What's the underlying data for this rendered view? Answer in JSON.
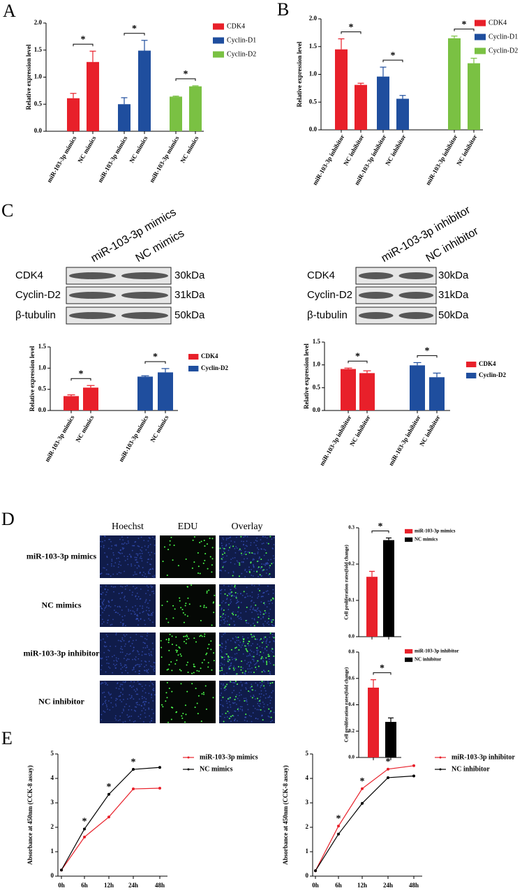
{
  "panels": [
    "A",
    "B",
    "C",
    "D",
    "E"
  ],
  "blots": [
    {
      "lanes": [
        "miR-103-3p mimics",
        "NC mimics"
      ],
      "proteins": [
        "CDK4",
        "Cyclin-D2",
        "β-tubulin"
      ],
      "sizes": [
        "30kDa",
        "31kDa",
        "50kDa"
      ]
    },
    {
      "lanes": [
        "miR-103-3p inhibitor",
        "NC inhibitor"
      ],
      "proteins": [
        "CDK4",
        "Cyclin-D2",
        "β-tubulin"
      ],
      "sizes": [
        "30kDa",
        "31kDa",
        "50kDa"
      ]
    }
  ],
  "edu": {
    "columns": [
      "Hoechst",
      "EDU",
      "Overlay"
    ],
    "rows": [
      "miR-103-3p mimics",
      "NC mimics",
      "miR-103-3p inhibitor",
      "NC inhibitor"
    ]
  },
  "chart_data": [
    {
      "type": "bar",
      "y_label": "Relative expression level",
      "categories": [
        "miR-103-3p mimics",
        "NC mimics",
        "miR-103-3p mimics",
        "NC mimics",
        "miR-103-3p mimics",
        "NC mimics"
      ],
      "series": [
        {
          "name": "CDK4",
          "color": "#e8202a",
          "values": [
            0.61,
            1.28,
            null,
            null,
            null,
            null
          ],
          "errors": [
            0.09,
            0.2,
            null,
            null,
            null,
            null
          ]
        },
        {
          "name": "Cyclin-D1",
          "color": "#1f4e9e",
          "values": [
            null,
            null,
            0.5,
            1.49,
            null,
            null
          ],
          "errors": [
            null,
            null,
            0.12,
            0.19,
            null,
            null
          ]
        },
        {
          "name": "Cyclin-D2",
          "color": "#7ac143",
          "values": [
            null,
            null,
            null,
            null,
            0.64,
            0.83
          ],
          "errors": [
            null,
            null,
            null,
            null,
            0.01,
            0.01
          ]
        }
      ],
      "annotations": [
        "*",
        "*",
        "*"
      ],
      "ylim": [
        0,
        2
      ],
      "yticks": [
        {
          "value": 0,
          "label": "0.0"
        },
        {
          "value": 0.5,
          "label": "0.5"
        },
        {
          "value": 1,
          "label": "1.0"
        },
        {
          "value": 1.5,
          "label": "1.5"
        },
        {
          "value": 2,
          "label": "2.0"
        }
      ]
    },
    {
      "type": "bar",
      "y_label": "Relative expression level",
      "categories": [
        "miR-103-3p inhibitor",
        "NC inhibitor",
        "miR-103-3p inhibitor",
        "NC inhibitor",
        "miR-103-3p inhibitor",
        "NC inhibitor"
      ],
      "series": [
        {
          "name": "CDK4",
          "color": "#e8202a",
          "values": [
            1.45,
            0.81,
            null,
            null,
            null,
            null
          ],
          "errors": [
            0.19,
            0.03,
            null,
            null,
            null,
            null
          ]
        },
        {
          "name": "Cyclin-D1",
          "color": "#1f4e9e",
          "values": [
            null,
            null,
            0.96,
            0.56,
            null,
            null
          ],
          "errors": [
            null,
            null,
            0.17,
            0.06,
            null,
            null
          ]
        },
        {
          "name": "Cyclin-D2",
          "color": "#7ac143",
          "values": [
            null,
            null,
            null,
            null,
            1.65,
            1.2
          ],
          "errors": [
            null,
            null,
            null,
            null,
            0.04,
            0.09
          ]
        }
      ],
      "annotations": [
        "*",
        "*",
        "*"
      ],
      "ylim": [
        0,
        2
      ],
      "yticks": [
        {
          "value": 0,
          "label": "0.0"
        },
        {
          "value": 0.5,
          "label": "0.5"
        },
        {
          "value": 1,
          "label": "1.0"
        },
        {
          "value": 1.5,
          "label": "1.5"
        },
        {
          "value": 2,
          "label": "2.0"
        }
      ]
    },
    {
      "type": "bar",
      "y_label": "Relative expression level",
      "categories": [
        "miR-103-3p mimics",
        "NC mimics",
        "miR-103-3p mimics",
        "NC mimics"
      ],
      "series": [
        {
          "name": "CDK4",
          "color": "#e8202a",
          "values": [
            0.34,
            0.54,
            null,
            null
          ],
          "errors": [
            0.03,
            0.05,
            null,
            null
          ]
        },
        {
          "name": "Cyclin-D2",
          "color": "#1f4e9e",
          "values": [
            null,
            null,
            0.8,
            0.9
          ],
          "errors": [
            null,
            null,
            0.02,
            0.09
          ]
        }
      ],
      "annotations": [
        "*",
        "*"
      ],
      "ylim": [
        0,
        1.5
      ],
      "yticks": [
        {
          "value": 0,
          "label": "0.0"
        },
        {
          "value": 0.5,
          "label": "0.5"
        },
        {
          "value": 1,
          "label": "1.0"
        },
        {
          "value": 1.5,
          "label": "1.5"
        }
      ]
    },
    {
      "type": "bar",
      "y_label": "Relative expression level",
      "categories": [
        "miR-103-3p inhibitor",
        "NC inhibitor",
        "miR-103-3p inhibitor",
        "NC inhibitor"
      ],
      "series": [
        {
          "name": "CDK4",
          "color": "#e8202a",
          "values": [
            0.91,
            0.82,
            null,
            null
          ],
          "errors": [
            0.02,
            0.05,
            null,
            null
          ]
        },
        {
          "name": "Cyclin-D2",
          "color": "#1f4e9e",
          "values": [
            null,
            null,
            0.99,
            0.73
          ],
          "errors": [
            null,
            null,
            0.06,
            0.09
          ]
        }
      ],
      "annotations": [
        "*",
        "*"
      ],
      "ylim": [
        0,
        1.5
      ],
      "yticks": [
        {
          "value": 0,
          "label": "0.0"
        },
        {
          "value": 0.5,
          "label": "0.5"
        },
        {
          "value": 1,
          "label": "1.0"
        },
        {
          "value": 1.5,
          "label": "1.5"
        }
      ]
    },
    {
      "type": "bar",
      "y_label": "Cell proliferation rates(fold change)",
      "categories": [
        null,
        null
      ],
      "series": [
        {
          "name": "miR-103-3p mimics",
          "color": "#e8202a",
          "values": [
            0.165,
            null
          ],
          "errors": [
            0.015,
            null
          ]
        },
        {
          "name": "NC mimics",
          "color": "#000000",
          "values": [
            null,
            0.266
          ],
          "errors": [
            null,
            0.006
          ]
        }
      ],
      "annotations": [
        "*"
      ],
      "ylim": [
        0,
        0.3
      ],
      "yticks": [
        {
          "value": 0,
          "label": "0.0"
        },
        0.1,
        0.2,
        0.3
      ]
    },
    {
      "type": "bar",
      "y_label": "Cell proliferation rates(fold change)",
      "categories": [
        null,
        null
      ],
      "series": [
        {
          "name": "miR-103-3p inhibitor",
          "color": "#e8202a",
          "values": [
            0.53,
            null
          ],
          "errors": [
            0.06,
            null
          ]
        },
        {
          "name": "NC inhibitor",
          "color": "#000000",
          "values": [
            null,
            0.27
          ],
          "errors": [
            null,
            0.03
          ]
        }
      ],
      "annotations": [
        "*"
      ],
      "ylim": [
        0,
        0.8
      ],
      "yticks": [
        {
          "value": 0,
          "label": "0.0"
        },
        0.2,
        0.4,
        0.6,
        0.8
      ]
    },
    {
      "type": "line",
      "y_label": "Absorbance at 450nm (CCK-8 assay)",
      "categories": [
        "0h",
        "6h",
        "12h",
        "24h",
        "48h"
      ],
      "series": [
        {
          "name": "miR-103-3p mimics",
          "color": "#e8202a",
          "values": [
            0.25,
            1.6,
            2.42,
            3.57,
            3.6
          ]
        },
        {
          "name": "NC mimics",
          "color": "#000000",
          "values": [
            0.25,
            1.93,
            3.35,
            4.37,
            4.45
          ]
        }
      ],
      "annotations": [
        null,
        "*",
        "*",
        "*",
        null
      ],
      "ylim": [
        0,
        5
      ],
      "yticks": [
        0,
        1,
        2,
        3,
        4,
        5
      ]
    },
    {
      "type": "line",
      "y_label": "Absorbance at 450nm (CCK-8 assay)",
      "categories": [
        "0h",
        "6h",
        "12h",
        "24h",
        "48h"
      ],
      "series": [
        {
          "name": "miR-103-3p inhibitor",
          "color": "#e8202a",
          "values": [
            0.22,
            2.05,
            3.58,
            4.38,
            4.52
          ]
        },
        {
          "name": "NC inhibitor",
          "color": "#000000",
          "values": [
            0.22,
            1.72,
            2.98,
            4.03,
            4.1
          ]
        }
      ],
      "annotations": [
        null,
        "*",
        "*",
        "*",
        null
      ],
      "ylim": [
        0,
        5
      ],
      "yticks": [
        0,
        1,
        2,
        3,
        4,
        5
      ]
    }
  ]
}
